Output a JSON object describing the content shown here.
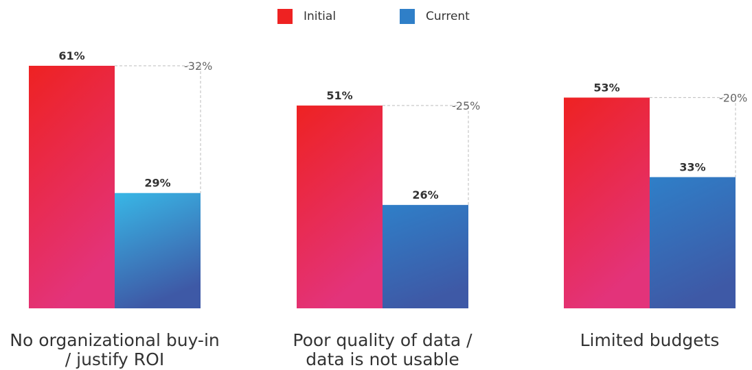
{
  "colors": {
    "initial_top": "#ee2222",
    "initial_bottom": "#e3337a",
    "current_top_1": "#38b7e6",
    "current_top": "#2f7fc8",
    "current_bottom": "#3e59a6",
    "value_text": "#333333",
    "delta_text": "#666666",
    "guide_line": "#bbbbbb"
  },
  "legend": {
    "position": "top-center",
    "items": [
      {
        "label": "Initial",
        "color": "#ee2222"
      },
      {
        "label": "Current",
        "color": "#2f7fc8"
      }
    ]
  },
  "chart_data": {
    "type": "bar",
    "categories": [
      [
        "No organizational buy-in",
        "/ justify ROI"
      ],
      [
        "Poor quality of data /",
        "data is not usable"
      ],
      [
        "Limited budgets"
      ]
    ],
    "series": [
      {
        "name": "Initial",
        "values": [
          61,
          51,
          53
        ],
        "labels": [
          "61%",
          "51%",
          "53%"
        ]
      },
      {
        "name": "Current",
        "values": [
          29,
          26,
          33
        ],
        "labels": [
          "29%",
          "26%",
          "33%"
        ]
      }
    ],
    "change_labels": [
      "-32%",
      "-25%",
      "-20%"
    ],
    "unit": "%",
    "ylim": [
      0,
      61
    ],
    "grid": false,
    "title": "",
    "xlabel": "",
    "ylabel": ""
  }
}
